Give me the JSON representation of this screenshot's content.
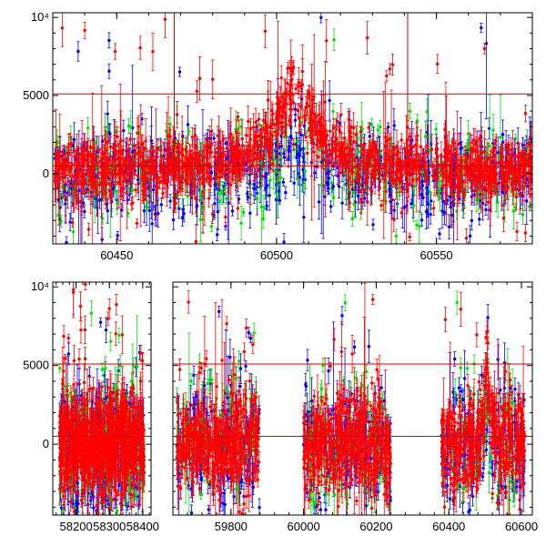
{
  "chart_data": [
    {
      "type": "scatter",
      "title": "",
      "xlabel": "",
      "ylabel": "",
      "xlim": [
        60430,
        60580
      ],
      "ylim": [
        -4500,
        10300
      ],
      "x_ticks": [
        60450,
        60500,
        60550
      ],
      "y_ticks": [
        {
          "value": 0,
          "label": "0"
        },
        {
          "value": 5000,
          "label": "5000"
        },
        {
          "value": 10000,
          "label": "10⁴"
        }
      ],
      "hlines": [
        5100,
        500
      ],
      "vlines": [
        60468,
        60541
      ],
      "colors": {
        "red": "#ff0000",
        "green": "#00e000",
        "blue": "#0000ff",
        "reference": "#d00000"
      },
      "series": [
        {
          "color_key": "red",
          "seed": 11,
          "density": 1300,
          "base": 300,
          "spread": 900,
          "bump": {
            "center": 60505,
            "width": 16,
            "height": 5600
          }
        },
        {
          "color_key": "blue",
          "seed": 23,
          "density": 700,
          "base": -100,
          "spread": 1300,
          "bump": {
            "center": 60505,
            "width": 14,
            "height": 1500
          }
        },
        {
          "color_key": "green",
          "seed": 37,
          "density": 260,
          "base": 200,
          "spread": 1700,
          "bump": {
            "center": 60505,
            "width": 14,
            "height": 1500
          }
        }
      ]
    },
    {
      "type": "scatter",
      "title": "",
      "xlabel": "",
      "ylabel": "",
      "ylim": [
        -4500,
        10300
      ],
      "y_ticks": [
        {
          "value": 0,
          "label": "0"
        },
        {
          "value": 5000,
          "label": "5000"
        },
        {
          "value": 10000,
          "label": "10⁴"
        }
      ],
      "hlines": [
        5100,
        500
      ],
      "panels": [
        {
          "xlim": [
            58130,
            58425
          ],
          "x_ticks": [
            58200,
            58300,
            58400
          ],
          "segments": [
            [
              58150,
              58405
            ]
          ]
        },
        {
          "xlim": [
            59640,
            60630
          ],
          "x_ticks": [
            59800,
            60000,
            60200,
            60400,
            60600
          ],
          "segments": [
            [
              59650,
              59880
            ],
            [
              60000,
              60240
            ],
            [
              60380,
              60610
            ]
          ],
          "bump": {
            "center": 60505,
            "width": 16,
            "height": 5300
          }
        }
      ],
      "colors": {
        "red": "#ff0000",
        "green": "#00e000",
        "blue": "#0000ff",
        "reference": "#d00000"
      },
      "series": [
        {
          "color_key": "red",
          "seed": 51,
          "density": 1300,
          "base": 0,
          "spread": 1500
        },
        {
          "color_key": "blue",
          "seed": 63,
          "density": 600,
          "base": -300,
          "spread": 1900
        },
        {
          "color_key": "green",
          "seed": 77,
          "density": 260,
          "base": 0,
          "spread": 2200
        }
      ]
    }
  ]
}
